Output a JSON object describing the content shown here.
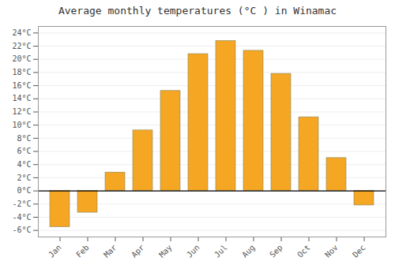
{
  "chart_data": {
    "type": "bar",
    "title": "Average monthly temperatures (°C ) in Winamac",
    "categories": [
      "Jan",
      "Feb",
      "Mar",
      "Apr",
      "May",
      "Jun",
      "Jul",
      "Aug",
      "Sep",
      "Oct",
      "Nov",
      "Dec"
    ],
    "values": [
      -5.5,
      -3.3,
      2.8,
      9.2,
      15.2,
      20.8,
      22.8,
      21.3,
      17.8,
      11.2,
      5.0,
      -2.2
    ],
    "color": "#F5A623",
    "ylim": [
      -7,
      25
    ],
    "yticks": [
      {
        "value": -6,
        "label": "-6°C"
      },
      {
        "value": -4,
        "label": "-4°C"
      },
      {
        "value": -2,
        "label": "-2°C"
      },
      {
        "value": 0,
        "label": "0°C"
      },
      {
        "value": 2,
        "label": "2°C"
      },
      {
        "value": 4,
        "label": "4°C"
      },
      {
        "value": 6,
        "label": "6°C"
      },
      {
        "value": 8,
        "label": "8°C"
      },
      {
        "value": 10,
        "label": "10°C"
      },
      {
        "value": 12,
        "label": "12°C"
      },
      {
        "value": 14,
        "label": "14°C"
      },
      {
        "value": 16,
        "label": "16°C"
      },
      {
        "value": 18,
        "label": "18°C"
      },
      {
        "value": 20,
        "label": "20°C"
      },
      {
        "value": 22,
        "label": "22°C"
      },
      {
        "value": 24,
        "label": "24°C"
      }
    ],
    "grid": true
  }
}
